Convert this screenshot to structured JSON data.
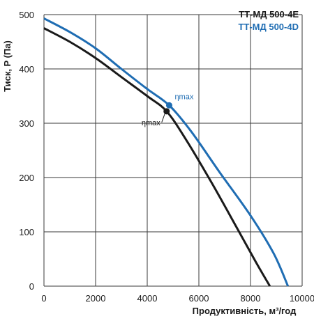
{
  "chart_data": {
    "type": "line",
    "xlabel": "Продуктивність, м³/год",
    "ylabel": "Тиск,  P (Па)",
    "xlim": [
      0,
      10000
    ],
    "ylim": [
      0,
      500
    ],
    "xticks": [
      0,
      2000,
      4000,
      6000,
      8000,
      10000
    ],
    "yticks": [
      0,
      100,
      200,
      300,
      400,
      500
    ],
    "grid": true,
    "legend_position": "top-right",
    "series": [
      {
        "name": "ТТ-МД 500-4Е",
        "color": "#1a1a1a",
        "x": [
          0,
          1000,
          2000,
          3000,
          4000,
          4750,
          5500,
          6500,
          7500,
          8200,
          8750
        ],
        "y": [
          475,
          450,
          420,
          385,
          350,
          322,
          270,
          190,
          105,
          45,
          0
        ],
        "eta_max": {
          "x": 4750,
          "y": 322,
          "label": "ηmax"
        }
      },
      {
        "name": "ТТ-МД 500-4D",
        "color": "#1f6db3",
        "x": [
          0,
          1000,
          2000,
          3000,
          4000,
          4850,
          5700,
          6800,
          8000,
          8900,
          9450
        ],
        "y": [
          493,
          468,
          438,
          400,
          363,
          333,
          285,
          210,
          130,
          60,
          0
        ],
        "eta_max": {
          "x": 4850,
          "y": 333,
          "label": "ηmax"
        }
      }
    ]
  }
}
